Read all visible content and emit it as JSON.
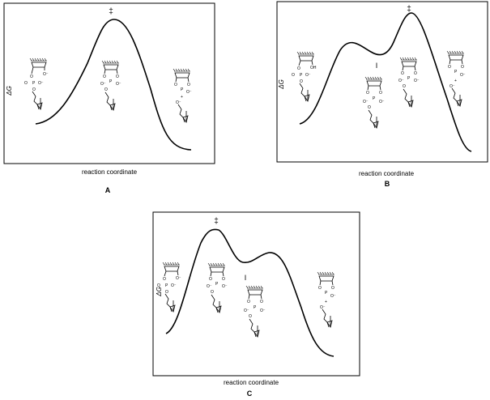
{
  "panels": [
    {
      "id": "A",
      "letter": "A",
      "ylabel": "ΔG",
      "xlabel": "reaction coordinate",
      "marks": [
        "‡"
      ]
    },
    {
      "id": "B",
      "letter": "B",
      "ylabel": "ΔG",
      "xlabel": "reaction coordinate",
      "marks": [
        "‡",
        "I"
      ]
    },
    {
      "id": "C",
      "letter": "C",
      "ylabel": "ΔG",
      "xlabel": "reaction coordinate",
      "marks": [
        "‡",
        "I"
      ]
    }
  ],
  "mol_text": {
    "o": "O",
    "om": "O⁻",
    "p": "P",
    "oh": "OH",
    "plus": "+"
  }
}
